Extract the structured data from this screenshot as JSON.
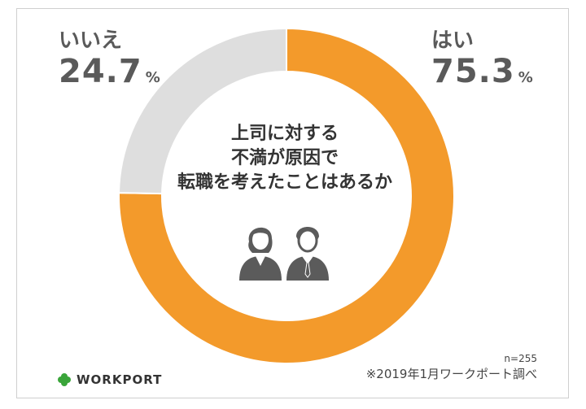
{
  "chart_data": {
    "type": "pie",
    "variant": "donut",
    "title": "上司に対する不満が原因で転職を考えたことはあるか",
    "title_lines": [
      "上司に対する",
      "不満が原因で",
      "転職を考えたことはあるか"
    ],
    "slices": [
      {
        "label": "はい",
        "value": 75.3,
        "value_text": "75.3",
        "color": "#f39a2b"
      },
      {
        "label": "いいえ",
        "value": 24.7,
        "value_text": "24.7",
        "color": "#dedede"
      }
    ],
    "unit": "%",
    "n_label": "n=255",
    "source": "※2019年1月ワークポート調べ"
  },
  "brand": {
    "name": "WORKPORT",
    "icon": "clover-icon",
    "icon_color": "#3aa53a"
  },
  "colors": {
    "accent": "#f39a2b",
    "secondary": "#dedede",
    "text": "#5a5a5a"
  }
}
